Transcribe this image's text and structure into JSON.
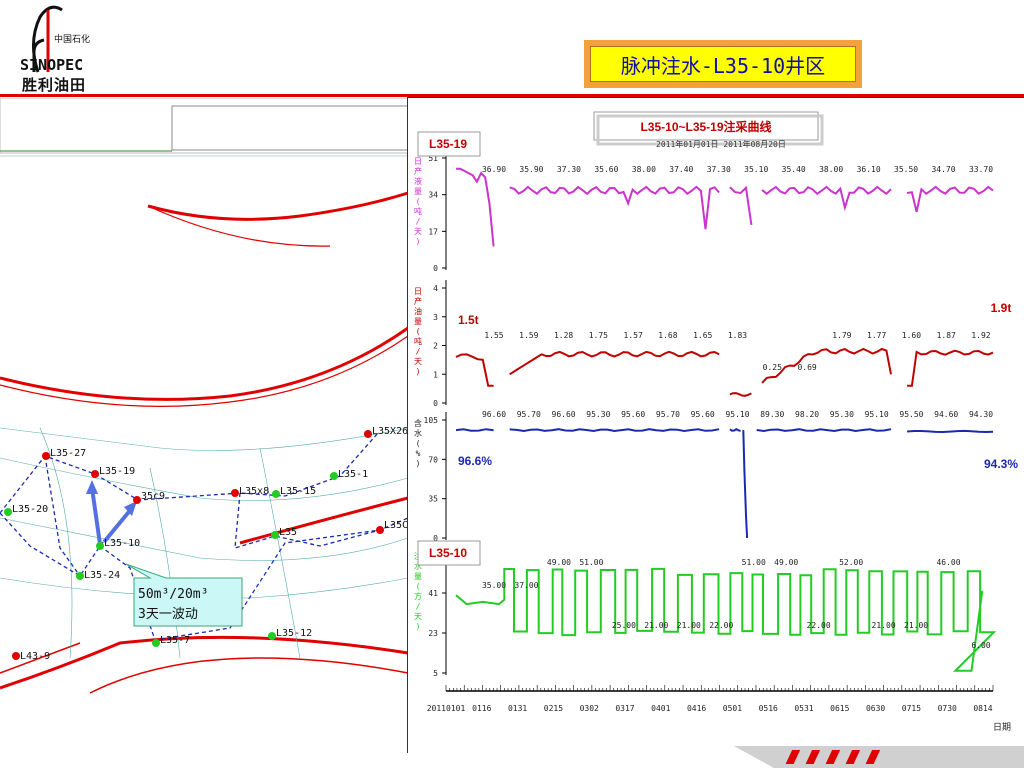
{
  "header": {
    "title": "脉冲注水-L35-10井区",
    "logo_text_top": "中国石化",
    "logo_brand": "SINOPEC",
    "logo_text_bottom": "胜利油田"
  },
  "colors": {
    "accent_red": "#e00000",
    "title_bg": "#ffff00",
    "title_border": "#f4a13b",
    "magenta": "#cc33cc",
    "darkred": "#c00000",
    "blue": "#1a2ab0",
    "green": "#22cc22"
  },
  "map": {
    "wells": [
      {
        "label": "L35-27",
        "color": "red"
      },
      {
        "label": "L35-19",
        "color": "red"
      },
      {
        "label": "L35-20",
        "color": "green"
      },
      {
        "label": "35c9",
        "color": "red"
      },
      {
        "label": "L35x8",
        "color": "red"
      },
      {
        "label": "L35-15",
        "color": "green"
      },
      {
        "label": "L35-1",
        "color": "green"
      },
      {
        "label": "L35X26",
        "color": "red"
      },
      {
        "label": "L35-10",
        "color": "green"
      },
      {
        "label": "L35-24",
        "color": "green"
      },
      {
        "label": "L35",
        "color": "green"
      },
      {
        "label": "L35C",
        "color": "red"
      },
      {
        "label": "L35-12",
        "color": "green"
      },
      {
        "label": "L35-7",
        "color": "green"
      },
      {
        "label": "L43-9",
        "color": "red"
      }
    ],
    "callout_line1": "50m³/20m³",
    "callout_line2": "3天一波动"
  },
  "chart_data": {
    "type": "line",
    "title": "L35-10~L35-19注采曲线",
    "subtitle": "2011年01月01日  2011年08月20日",
    "xlabel": "日期",
    "x_ticks": [
      "20110101",
      "0116",
      "0131",
      "0215",
      "0302",
      "0317",
      "0401",
      "0416",
      "0501",
      "0516",
      "0531",
      "0615",
      "0630",
      "0715",
      "0730",
      "0814"
    ],
    "well_tags": [
      "L35-19",
      "L35-10"
    ],
    "panels": [
      {
        "name": "日产液量",
        "ylabel": "日产液量(吨/天)",
        "unit": "吨/天",
        "yticks": [
          "0",
          "17",
          "34",
          "51"
        ],
        "ylim": [
          0,
          51
        ],
        "labels": [
          "36.90",
          "35.90",
          "37.30",
          "35.60",
          "38.00",
          "37.40",
          "37.30",
          "35.10",
          "35.40",
          "38.00",
          "36.10",
          "35.50",
          "34.70",
          "33.70"
        ]
      },
      {
        "name": "日产油量",
        "ylabel": "日产油量(吨/天)",
        "unit": "吨/天",
        "yticks": [
          "0",
          "1",
          "2",
          "3",
          "4"
        ],
        "ylim": [
          0,
          4
        ],
        "labels": [
          "1.55",
          "1.59",
          "1.28",
          "1.75",
          "1.57",
          "1.68",
          "1.65",
          "1.83",
          "0.25",
          "0.69",
          "1.79",
          "1.77",
          "1.60",
          "1.87",
          "1.92"
        ],
        "annotations": [
          "1.5t",
          "1.9t"
        ]
      },
      {
        "name": "含水",
        "ylabel": "含水(%)",
        "unit": "%",
        "yticks": [
          "0",
          "35",
          "70",
          "105"
        ],
        "ylim": [
          0,
          105
        ],
        "labels": [
          "96.60",
          "95.70",
          "96.60",
          "95.30",
          "95.60",
          "95.70",
          "95.60",
          "95.10",
          "89.30",
          "98.20",
          "95.30",
          "95.10",
          "95.50",
          "94.60",
          "94.30"
        ],
        "annotations": [
          "96.6%",
          "94.3%"
        ]
      },
      {
        "name": "注水量",
        "ylabel": "注水量(方/天)",
        "unit": "方/天",
        "yticks": [
          "5",
          "23",
          "41"
        ],
        "ylim": [
          5,
          59
        ],
        "labels": [
          "35.00",
          "37.00",
          "49.00",
          "51.00",
          "25.00",
          "21.00",
          "21.00",
          "22.00",
          "51.00",
          "49.00",
          "22.00",
          "52.00",
          "21.00",
          "21.00",
          "46.00",
          "6.00"
        ]
      }
    ]
  }
}
